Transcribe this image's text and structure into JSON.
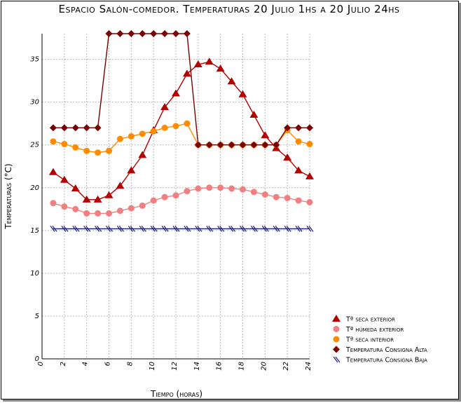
{
  "chart_data": {
    "type": "line",
    "title": "Espacio Salón-comedor. Temperaturas 20 Julio 1hs a 20 Julio 24hs",
    "xlabel": "Tiempo (horas)",
    "ylabel": "Temperaturas (°C)",
    "xlim": [
      0,
      24
    ],
    "ylim": [
      0,
      38
    ],
    "x_ticks": [
      "0",
      "2",
      "4",
      "6",
      "8",
      "10",
      "12",
      "14",
      "16",
      "18",
      "20",
      "22",
      "24"
    ],
    "y_ticks": [
      "0",
      "5",
      "10",
      "15",
      "20",
      "25",
      "30",
      "35"
    ],
    "grid": true,
    "legend_position": "bottom-right",
    "x": [
      1,
      2,
      3,
      4,
      5,
      6,
      7,
      8,
      9,
      10,
      11,
      12,
      13,
      14,
      15,
      16,
      17,
      18,
      19,
      20,
      21,
      22,
      23,
      24
    ],
    "series": [
      {
        "name": "Tª seca exterior",
        "color": "#b30000",
        "marker": "triangle",
        "values": [
          21.8,
          20.9,
          19.9,
          18.6,
          18.6,
          19.1,
          20.2,
          22.0,
          23.8,
          26.7,
          29.4,
          31.0,
          33.3,
          34.4,
          34.7,
          33.9,
          32.4,
          30.9,
          28.5,
          26.1,
          24.6,
          23.5,
          22.0,
          21.3
        ]
      },
      {
        "name": "Tª húmeda exterior",
        "color": "#f08080",
        "marker": "circle",
        "values": [
          18.2,
          17.8,
          17.5,
          17.0,
          17.0,
          17.0,
          17.3,
          17.6,
          17.9,
          18.5,
          18.9,
          19.1,
          19.6,
          19.9,
          20.0,
          20.0,
          19.9,
          19.8,
          19.5,
          19.2,
          18.9,
          18.8,
          18.5,
          18.3
        ]
      },
      {
        "name": "Tª seca interior",
        "color": "#ff8c00",
        "marker": "circle",
        "values": [
          25.4,
          25.1,
          24.7,
          24.3,
          24.1,
          24.3,
          25.7,
          26.0,
          26.3,
          26.6,
          27.0,
          27.2,
          27.5,
          25.0,
          25.0,
          25.0,
          25.0,
          25.0,
          25.0,
          25.0,
          25.0,
          26.7,
          25.4,
          25.1
        ]
      },
      {
        "name": "Temperatura Consigna Alta",
        "color": "#7a0000",
        "marker": "diamond",
        "values": [
          27,
          27,
          27,
          27,
          27,
          38,
          38,
          38,
          38,
          38,
          38,
          38,
          38,
          25,
          25,
          25,
          25,
          25,
          25,
          25,
          25,
          27,
          27,
          27
        ]
      },
      {
        "name": "Temperatura Consigna Baja",
        "color": "#1a1a80",
        "marker": "hatch",
        "values": [
          15.2,
          15.2,
          15.2,
          15.2,
          15.2,
          15.2,
          15.2,
          15.2,
          15.2,
          15.2,
          15.2,
          15.2,
          15.2,
          15.2,
          15.2,
          15.2,
          15.2,
          15.2,
          15.2,
          15.2,
          15.2,
          15.2,
          15.2,
          15.2
        ]
      }
    ]
  }
}
